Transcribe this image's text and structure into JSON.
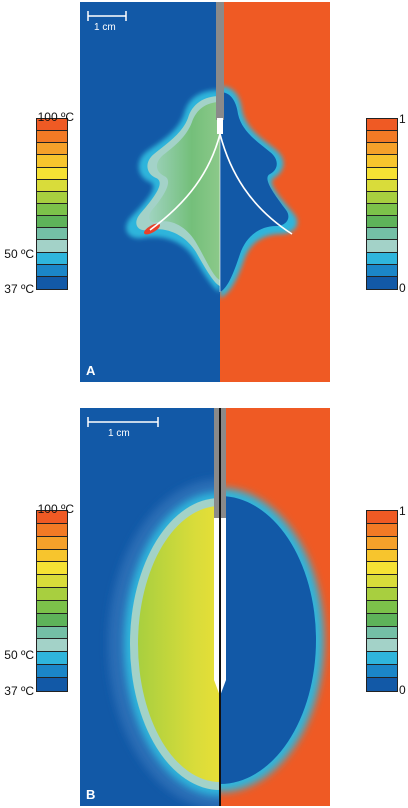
{
  "panels": [
    {
      "letter": "A",
      "scale_label": "1 cm",
      "left_scale": {
        "top": "100 ºC",
        "mid": "50 ºC",
        "bottom": "37 ºC"
      },
      "right_scale": {
        "top": "1",
        "bottom": "0"
      }
    },
    {
      "letter": "B",
      "scale_label": "1 cm",
      "left_scale": {
        "top": "100 ºC",
        "mid": "50 ºC",
        "bottom": "37 ºC"
      },
      "right_scale": {
        "top": "1",
        "bottom": "0"
      }
    }
  ],
  "colors": {
    "cold": "#1259a7",
    "hot": "#ef5a24",
    "colormap": [
      "#ef5a24",
      "#f27a25",
      "#f5a12a",
      "#f7c52d",
      "#f6e234",
      "#d9dc3a",
      "#a8cf3f",
      "#7cc24a",
      "#5eb35a",
      "#74bfa6",
      "#a3d2c8",
      "#2fb5dc",
      "#1b86c8",
      "#1259a7"
    ]
  }
}
